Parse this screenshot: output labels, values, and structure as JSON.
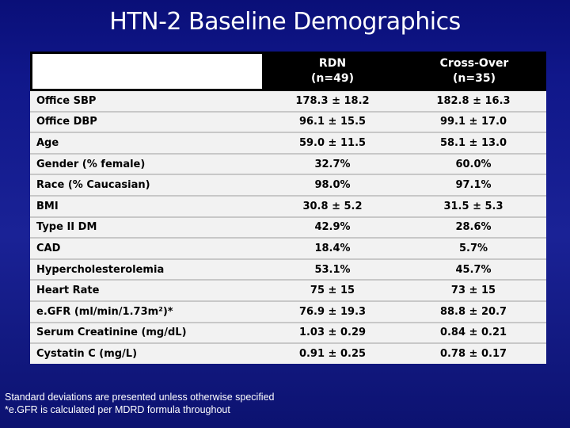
{
  "title": "HTN-2 Baseline Demographics",
  "table": {
    "headers": [
      "",
      "RDN\n(n=49)",
      "Cross-Over\n(n=35)"
    ],
    "rows": [
      [
        "Office SBP",
        "178.3 ± 18.2",
        "182.8 ± 16.3"
      ],
      [
        "Office DBP",
        "96.1 ± 15.5",
        "99.1 ± 17.0"
      ],
      [
        "Age",
        "59.0 ± 11.5",
        "58.1 ± 13.0"
      ],
      [
        "Gender (% female)",
        "32.7%",
        "60.0%"
      ],
      [
        "Race (% Caucasian)",
        "98.0%",
        "97.1%"
      ],
      [
        "BMI",
        "30.8 ± 5.2",
        "31.5 ± 5.3"
      ],
      [
        "Type II DM",
        "42.9%",
        "28.6%"
      ],
      [
        "CAD",
        "18.4%",
        "5.7%"
      ],
      [
        "Hypercholesterolemia",
        "53.1%",
        "45.7%"
      ],
      [
        "Heart Rate",
        "75 ± 15",
        "73 ± 15"
      ],
      [
        "e.GFR (ml/min/1.73m²)*",
        "76.9 ± 19.3",
        "88.8 ± 20.7"
      ],
      [
        "Serum Creatinine (mg/dL)",
        "1.03 ± 0.29",
        "0.84 ± 0.21"
      ],
      [
        "Cystatin C (mg/L)",
        "0.91 ± 0.25",
        "0.78 ± 0.17"
      ]
    ]
  },
  "footnotes": [
    "Standard deviations are presented unless otherwise specified",
    "*e.GFR is calculated per MDRD formula throughout"
  ]
}
